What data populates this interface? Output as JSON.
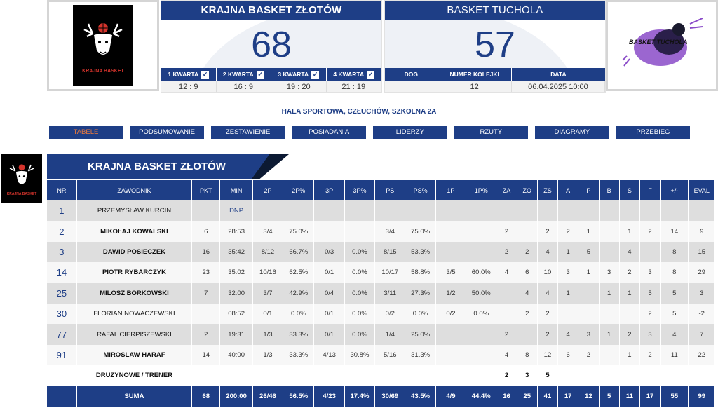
{
  "home": {
    "name": "KRAJNA BASKET ZŁOTÓW",
    "score": "68",
    "logo_text": "KRAJNA BASKET",
    "quarters_headers": [
      "1 KWARTA",
      "2 KWARTA",
      "3 KWARTA",
      "4 KWARTA"
    ],
    "quarters_values": [
      "12 : 9",
      "16 : 9",
      "19 : 20",
      "21 : 19"
    ]
  },
  "away": {
    "name": "BASKET TUCHOLA",
    "score": "57",
    "logo_text": "BASKET TUCHOLA",
    "info_headers": [
      "DOG",
      "NUMER KOLEJKI",
      "DATA"
    ],
    "info_values": [
      "",
      "12",
      "06.04.2025 10:00"
    ]
  },
  "venue": "HALA SPORTOWA, CZŁUCHÓW, SZKOLNA 2A",
  "tabs": [
    "TABELE",
    "PODSUMOWANIE",
    "ZESTAWIENIE",
    "POSIADANIA",
    "LIDERZY",
    "RZUTY",
    "DIAGRAMY",
    "PRZEBIEG"
  ],
  "team_header": "KRAJNA BASKET ZŁOTÓW",
  "columns": [
    "NR",
    "ZAWODNIK",
    "PKT",
    "MIN",
    "2P",
    "2P%",
    "3P",
    "3P%",
    "PS",
    "PS%",
    "1P",
    "1P%",
    "ZA",
    "ZO",
    "ZS",
    "A",
    "P",
    "B",
    "S",
    "F",
    "+/-",
    "EVAL"
  ],
  "players": [
    {
      "nr": "1",
      "name": "PRZEMYSŁAW KURCIN",
      "light": true,
      "pkt": "",
      "min": "DNP",
      "p2": "",
      "p2pct": "",
      "p3": "",
      "p3pct": "",
      "ps": "",
      "pspct": "",
      "p1": "",
      "p1pct": "",
      "za": "",
      "zo": "",
      "zs": "",
      "a": "",
      "p": "",
      "b": "",
      "s": "",
      "f": "",
      "pm": "",
      "eval": ""
    },
    {
      "nr": "2",
      "name": "MIKOŁAJ KOWALSKI",
      "light": false,
      "pkt": "6",
      "min": "28:53",
      "p2": "3/4",
      "p2pct": "75.0%",
      "p3": "",
      "p3pct": "",
      "ps": "3/4",
      "pspct": "75.0%",
      "p1": "",
      "p1pct": "",
      "za": "2",
      "zo": "",
      "zs": "2",
      "a": "2",
      "p": "1",
      "b": "",
      "s": "1",
      "f": "2",
      "pm": "14",
      "eval": "9"
    },
    {
      "nr": "3",
      "name": "DAWID POSIECZEK",
      "light": false,
      "pkt": "16",
      "min": "35:42",
      "p2": "8/12",
      "p2pct": "66.7%",
      "p3": "0/3",
      "p3pct": "0.0%",
      "ps": "8/15",
      "pspct": "53.3%",
      "p1": "",
      "p1pct": "",
      "za": "2",
      "zo": "2",
      "zs": "4",
      "a": "1",
      "p": "5",
      "b": "",
      "s": "4",
      "f": "",
      "pm": "8",
      "eval": "15"
    },
    {
      "nr": "14",
      "name": "PIOTR RYBARCZYK",
      "light": false,
      "pkt": "23",
      "min": "35:02",
      "p2": "10/16",
      "p2pct": "62.5%",
      "p3": "0/1",
      "p3pct": "0.0%",
      "ps": "10/17",
      "pspct": "58.8%",
      "p1": "3/5",
      "p1pct": "60.0%",
      "za": "4",
      "zo": "6",
      "zs": "10",
      "a": "3",
      "p": "1",
      "b": "3",
      "s": "2",
      "f": "3",
      "pm": "8",
      "eval": "29"
    },
    {
      "nr": "25",
      "name": "MILOSZ BORKOWSKI",
      "light": false,
      "pkt": "7",
      "min": "32:00",
      "p2": "3/7",
      "p2pct": "42.9%",
      "p3": "0/4",
      "p3pct": "0.0%",
      "ps": "3/11",
      "pspct": "27.3%",
      "p1": "1/2",
      "p1pct": "50.0%",
      "za": "",
      "zo": "4",
      "zs": "4",
      "a": "1",
      "p": "",
      "b": "1",
      "s": "1",
      "f": "5",
      "pm": "5",
      "eval": "3"
    },
    {
      "nr": "30",
      "name": "FLORIAN NOWACZEWSKI",
      "light": true,
      "pkt": "",
      "min": "08:52",
      "p2": "0/1",
      "p2pct": "0.0%",
      "p3": "0/1",
      "p3pct": "0.0%",
      "ps": "0/2",
      "pspct": "0.0%",
      "p1": "0/2",
      "p1pct": "0.0%",
      "za": "",
      "zo": "2",
      "zs": "2",
      "a": "",
      "p": "",
      "b": "",
      "s": "",
      "f": "2",
      "pm": "5",
      "eval": "-2"
    },
    {
      "nr": "77",
      "name": "RAFAL CIERPISZEWSKI",
      "light": true,
      "pkt": "2",
      "min": "19:31",
      "p2": "1/3",
      "p2pct": "33.3%",
      "p3": "0/1",
      "p3pct": "0.0%",
      "ps": "1/4",
      "pspct": "25.0%",
      "p1": "",
      "p1pct": "",
      "za": "2",
      "zo": "",
      "zs": "2",
      "a": "4",
      "p": "3",
      "b": "1",
      "s": "2",
      "f": "3",
      "pm": "4",
      "eval": "7"
    },
    {
      "nr": "91",
      "name": "MIROSLAW HARAF",
      "light": false,
      "pkt": "14",
      "min": "40:00",
      "p2": "1/3",
      "p2pct": "33.3%",
      "p3": "4/13",
      "p3pct": "30.8%",
      "ps": "5/16",
      "pspct": "31.3%",
      "p1": "",
      "p1pct": "",
      "za": "4",
      "zo": "8",
      "zs": "12",
      "a": "6",
      "p": "2",
      "b": "",
      "s": "1",
      "f": "2",
      "pm": "11",
      "eval": "22"
    }
  ],
  "team_row": {
    "label": "DRUŻYNOWE / TRENER",
    "za": "2",
    "zo": "3",
    "zs": "5"
  },
  "sum_row": {
    "label": "SUMA",
    "pkt": "68",
    "min": "200:00",
    "p2": "26/46",
    "p2pct": "56.5%",
    "p3": "4/23",
    "p3pct": "17.4%",
    "ps": "30/69",
    "pspct": "43.5%",
    "p1": "4/9",
    "p1pct": "44.4%",
    "za": "16",
    "zo": "25",
    "zs": "41",
    "a": "17",
    "p": "12",
    "b": "5",
    "s": "11",
    "f": "17",
    "pm": "55",
    "eval": "99"
  }
}
